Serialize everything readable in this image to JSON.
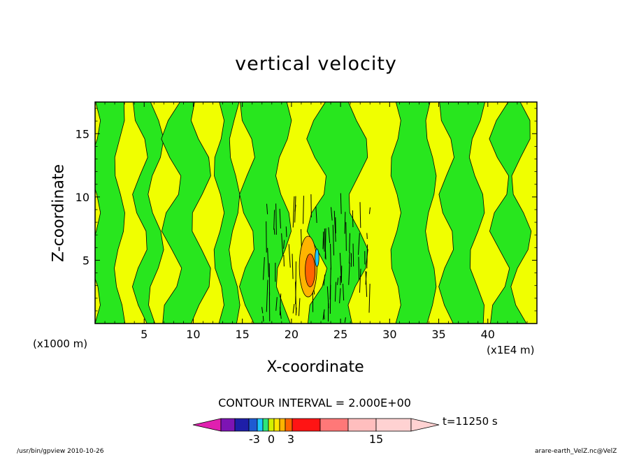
{
  "chart_data": {
    "type": "contour",
    "title": "vertical velocity",
    "xlabel": "X-coordinate",
    "ylabel": "Z-coordinate",
    "x_unit_left": "(x1000 m)",
    "x_unit_right": "(x1E4 m)",
    "x_ticks": [
      "5",
      "10",
      "15",
      "20",
      "25",
      "30",
      "35",
      "40"
    ],
    "y_ticks": [
      "5",
      "10",
      "15"
    ],
    "xlim": [
      0,
      45
    ],
    "ylim": [
      0,
      17.5
    ],
    "contour_interval_text": "CONTOUR INTERVAL = 2.000E+00",
    "time_text": "t=11250 s",
    "colorbar_labels": [
      "-3",
      "0",
      "3",
      "15"
    ],
    "colorbar_colors": [
      "#e020b0",
      "#7d14b4",
      "#1e1ea8",
      "#1e5ad2",
      "#1ec8ff",
      "#2de678",
      "#d2f000",
      "#ffe600",
      "#ffb400",
      "#ff6400",
      "#ff1414",
      "#ff7878",
      "#ffbebe",
      "#ffd2d2"
    ],
    "field_colors": {
      "positive": "#f0ff00",
      "negative": "#28e61e"
    }
  },
  "footer": {
    "left": "/usr/bin/gpview   2010-10-26",
    "right": "arare-earth_VelZ.nc@VelZ"
  }
}
